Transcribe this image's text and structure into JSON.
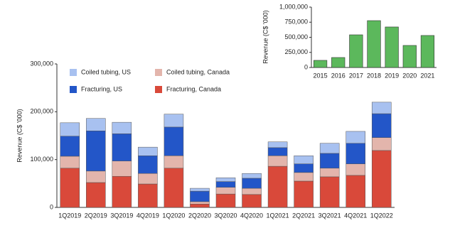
{
  "chart_data": [
    {
      "type": "bar",
      "stacked": true,
      "y_label": "Revenue (C$ '000)",
      "categories": [
        "1Q2019",
        "2Q2019",
        "3Q2019",
        "4Q2019",
        "1Q2020",
        "2Q2020",
        "3Q2020",
        "4Q2020",
        "1Q2021",
        "2Q2021",
        "3Q2021",
        "4Q2021",
        "1Q2022"
      ],
      "series": [
        {
          "name": "Fracturing, Canada",
          "color": "#d9493a",
          "values": [
            82000,
            52000,
            65000,
            49000,
            82000,
            7000,
            28000,
            27000,
            86000,
            55000,
            64000,
            67000,
            119000
          ]
        },
        {
          "name": "Coiled tubing, Canada",
          "color": "#e3b5ac",
          "values": [
            25000,
            24000,
            32000,
            22000,
            26000,
            5000,
            14000,
            13000,
            22000,
            18000,
            18000,
            24000,
            27000
          ]
        },
        {
          "name": "Fracturing, US",
          "color": "#2356c8",
          "values": [
            42000,
            84000,
            57000,
            37000,
            60000,
            22000,
            12000,
            21000,
            17000,
            18000,
            31000,
            43000,
            50000
          ]
        },
        {
          "name": "Coiled tubing, US",
          "color": "#a8c1f0",
          "values": [
            28000,
            26000,
            24000,
            18000,
            27000,
            6000,
            8000,
            10000,
            12000,
            17000,
            21000,
            25000,
            24000
          ]
        }
      ],
      "ylim": [
        0,
        300000
      ],
      "yticks": [
        0,
        {
          "value": 100000,
          "label": "100,000"
        },
        {
          "value": 200000,
          "label": "200,000"
        },
        {
          "value": 300000,
          "label": "300,000"
        }
      ],
      "grid": false
    },
    {
      "type": "bar",
      "y_label": "Revenue (C$ '000)",
      "categories": [
        "2015",
        "2016",
        "2017",
        "2018",
        "2019",
        "2020",
        "2021"
      ],
      "values": [
        118000,
        165000,
        541000,
        776000,
        671000,
        365000,
        530000
      ],
      "color": "#5cb85c",
      "ylim": [
        0,
        1000000
      ],
      "yticks": [
        0,
        {
          "value": 250000,
          "label": "250,000"
        },
        {
          "value": 500000,
          "label": "500,000"
        },
        {
          "value": 750000,
          "label": "750,000"
        },
        {
          "value": 1000000,
          "label": "1,000,000"
        }
      ],
      "grid": false
    }
  ]
}
